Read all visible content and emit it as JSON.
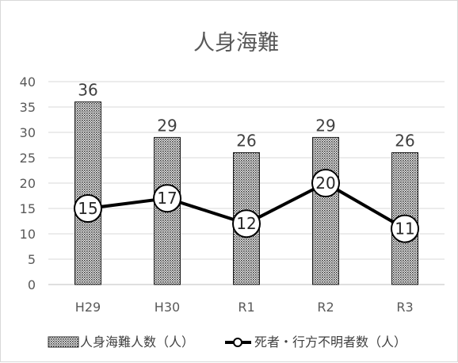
{
  "chart_data": {
    "type": "bar",
    "title": "人身海難",
    "categories": [
      "H29",
      "H30",
      "R1",
      "R2",
      "R3"
    ],
    "ylim": [
      0,
      40
    ],
    "yticks": [
      0,
      5,
      10,
      15,
      20,
      25,
      30,
      35,
      40
    ],
    "grid": true,
    "legend_position": "bottom",
    "series": [
      {
        "name": "人身海難人数（人）",
        "kind": "bar",
        "pattern": "dotted",
        "values": [
          36,
          29,
          26,
          29,
          26
        ]
      },
      {
        "name": "死者・行方不明者数（人）",
        "kind": "line",
        "color": "#000000",
        "marker": "circle",
        "values": [
          15,
          17,
          12,
          20,
          11
        ]
      }
    ]
  }
}
